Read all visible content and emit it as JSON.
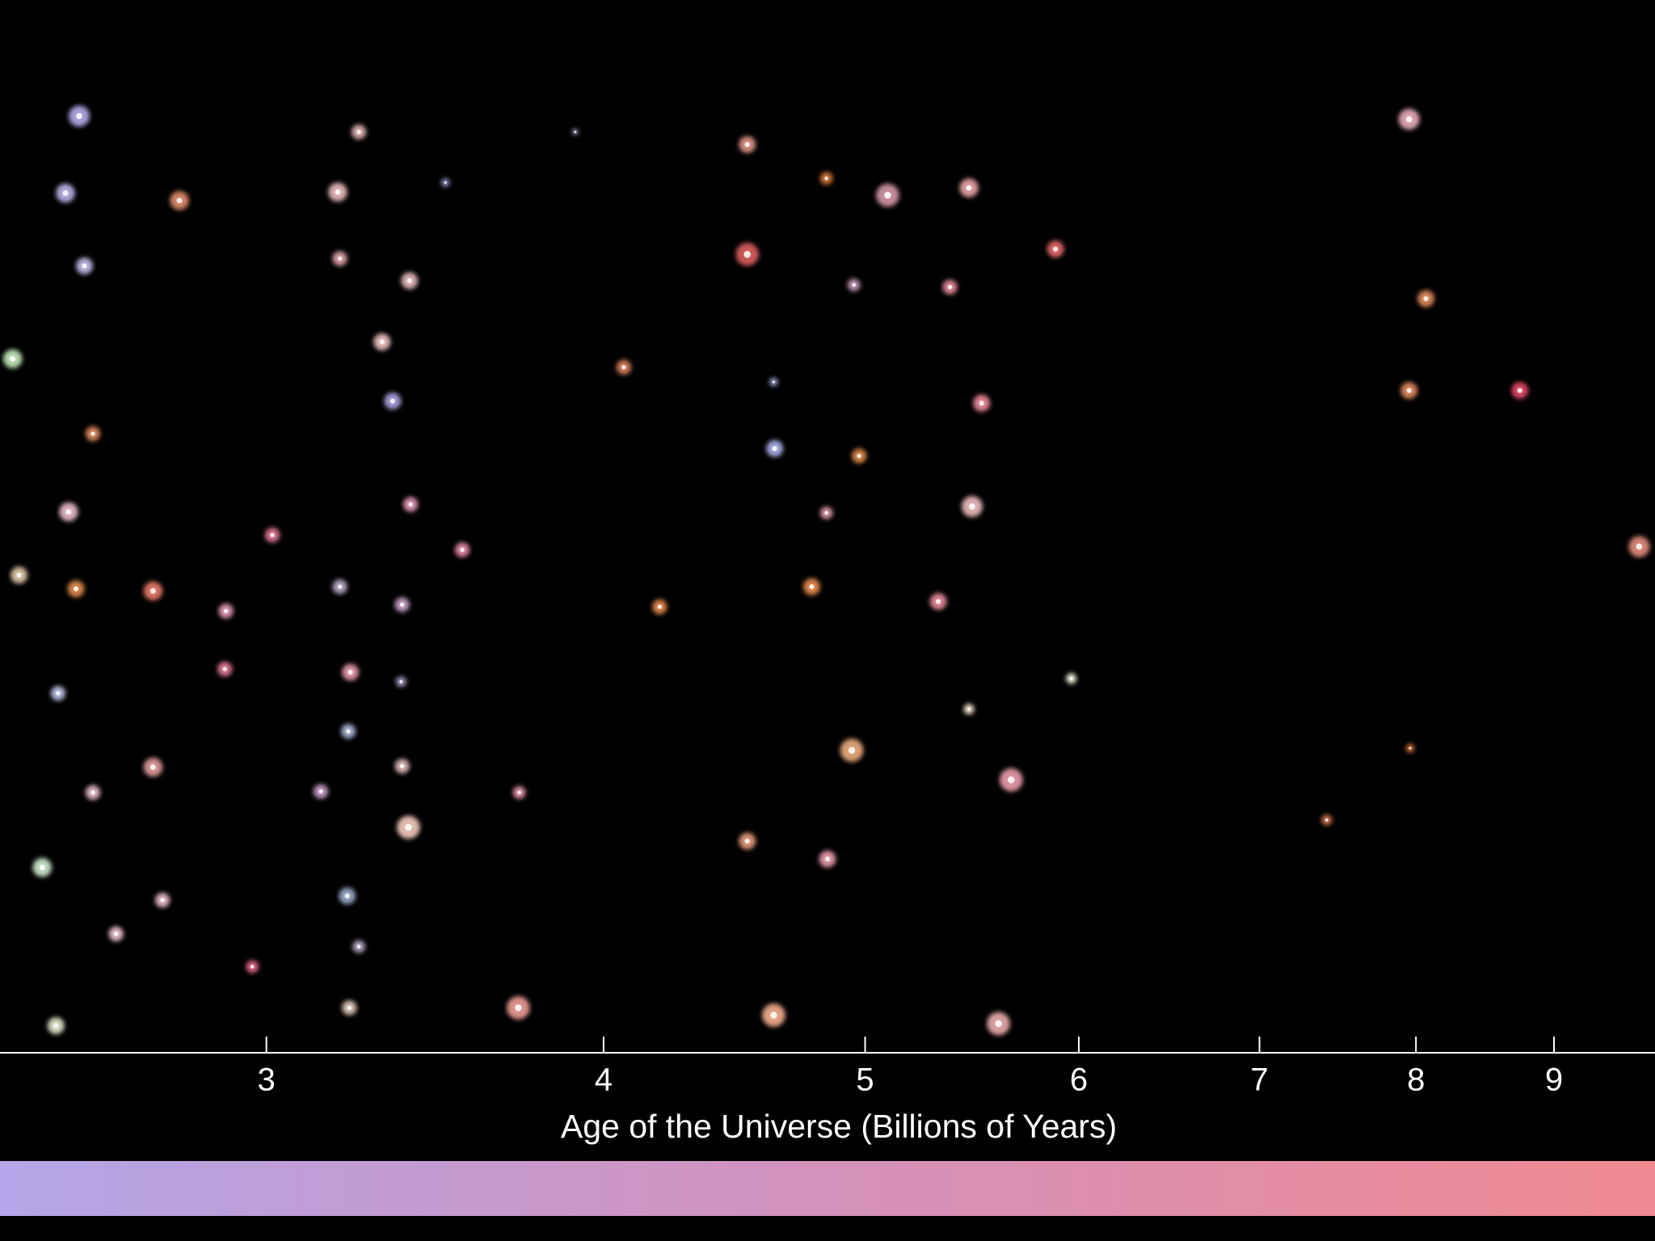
{
  "chart_data": {
    "type": "log-axis",
    "xlabel": "Age of the Universe (Billions of Years)",
    "xscale": "log",
    "xlim": [
      2.39,
      9.81
    ],
    "xticks": [
      3,
      4,
      5,
      6,
      7,
      8,
      9
    ]
  }
}
